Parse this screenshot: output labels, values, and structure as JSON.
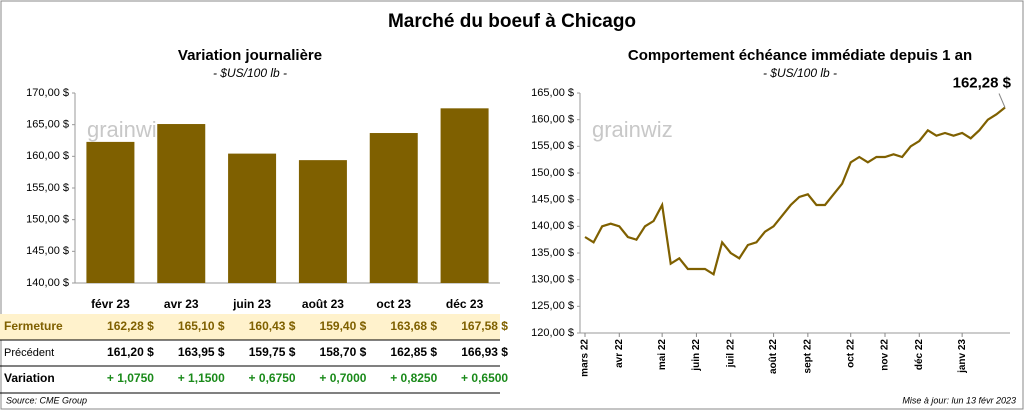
{
  "title": "Marché du boeuf à Chicago",
  "watermark": "grainwiz",
  "chart_data": [
    {
      "type": "bar",
      "title": "Variation  journalière",
      "subtitle": "- $US/100 lb -",
      "categories": [
        "févr 23",
        "avr 23",
        "juin 23",
        "août 23",
        "oct 23",
        "déc 23"
      ],
      "values": [
        162.28,
        165.1,
        160.43,
        159.4,
        163.68,
        167.58
      ],
      "color": "#7f6000",
      "ylim": [
        140,
        170
      ],
      "yticks": [
        {
          "value": 140,
          "label": "140,00 $"
        },
        {
          "value": 145,
          "label": "145,00 $"
        },
        {
          "value": 150,
          "label": "150,00 $"
        },
        {
          "value": 155,
          "label": "155,00 $"
        },
        {
          "value": 160,
          "label": "160,00 $"
        },
        {
          "value": 165,
          "label": "165,00 $"
        },
        {
          "value": 170,
          "label": "170,00 $"
        }
      ],
      "grid": false
    },
    {
      "type": "line",
      "title": "Comportement  échéance immédiate depuis 1 an",
      "subtitle": "- $US/100 lb -",
      "annotation": "162,28 $",
      "categories": [
        "mars 22",
        null,
        null,
        null,
        "avr 22",
        null,
        null,
        null,
        null,
        "mai 22",
        null,
        null,
        null,
        "juin 22",
        null,
        null,
        null,
        "juil 22",
        null,
        null,
        null,
        null,
        "août 22",
        null,
        null,
        null,
        "sept 22",
        null,
        null,
        null,
        null,
        "oct 22",
        null,
        null,
        null,
        "nov 22",
        null,
        null,
        null,
        "déc 22",
        null,
        null,
        null,
        null,
        "janv 23",
        null,
        null,
        null,
        null,
        null
      ],
      "values": [
        138,
        137,
        140,
        140.5,
        140,
        138,
        137.5,
        140,
        141,
        144,
        133,
        134,
        132,
        132,
        132,
        131,
        137,
        135,
        134,
        136.5,
        137,
        139,
        140,
        142,
        144,
        145.5,
        146,
        144,
        144,
        146,
        148,
        152,
        153,
        152,
        153,
        153,
        153.5,
        153,
        155,
        156,
        158,
        157,
        157.5,
        157,
        157.5,
        156.5,
        158,
        160,
        161,
        162.28
      ],
      "color": "#7f6000",
      "ylim": [
        120,
        165
      ],
      "yticks": [
        {
          "value": 120,
          "label": "120,00 $"
        },
        {
          "value": 125,
          "label": "125,00 $"
        },
        {
          "value": 130,
          "label": "130,00 $"
        },
        {
          "value": 135,
          "label": "135,00 $"
        },
        {
          "value": 140,
          "label": "140,00 $"
        },
        {
          "value": 145,
          "label": "145,00 $"
        },
        {
          "value": 150,
          "label": "150,00 $"
        },
        {
          "value": 155,
          "label": "155,00 $"
        },
        {
          "value": 160,
          "label": "160,00 $"
        },
        {
          "value": 165,
          "label": "165,00 $"
        }
      ],
      "grid": false
    }
  ],
  "table": {
    "rows": [
      {
        "label": "Fermeture",
        "cells": [
          "162,28  $",
          "165,10  $",
          "160,43  $",
          "159,40  $",
          "163,68  $",
          "167,58  $"
        ]
      },
      {
        "label": "Précédent",
        "cells": [
          "161,20  $",
          "163,95  $",
          "159,75  $",
          "158,70  $",
          "162,85  $",
          "166,93  $"
        ]
      },
      {
        "label": "Variation",
        "cells": [
          "+ 1,0750",
          "+ 1,1500",
          "+ 0,6750",
          "+ 0,7000",
          "+ 0,8250",
          "+ 0,6500"
        ]
      }
    ]
  },
  "footer": {
    "source": "Source: CME Group",
    "updated": "Mise à jour: lun 13 févr 2023"
  }
}
